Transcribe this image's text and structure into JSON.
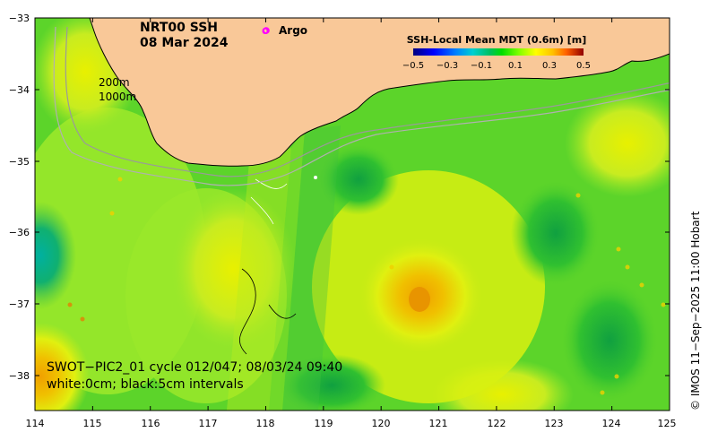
{
  "title": {
    "line1": "NRT00 SSH",
    "line2": "08 Mar 2024"
  },
  "argo": {
    "symbol": "o",
    "label": "Argo",
    "color": "#ff00ff"
  },
  "depth_labels": {
    "d200": "200m",
    "d1000": "1000m"
  },
  "colorbar": {
    "title": "SSH-Local Mean MDT (0.6m) [m]",
    "ticks": [
      "−0.5",
      "−0.3",
      "−0.1",
      "0.1",
      "0.3",
      "0.5"
    ],
    "colors": [
      "#00007f",
      "#0000ff",
      "#0080ff",
      "#00ffff",
      "#00c060",
      "#00dd00",
      "#80ff00",
      "#ffff00",
      "#ffc000",
      "#ff8000",
      "#ff0000",
      "#800000"
    ]
  },
  "caption": {
    "line1": "SWOT−PIC2_01 cycle 012/047; 08/03/24 09:40",
    "line2": "white:0cm; black:5cm intervals"
  },
  "x_ticks": [
    "114",
    "115",
    "116",
    "117",
    "118",
    "119",
    "120",
    "121",
    "122",
    "123",
    "124",
    "125"
  ],
  "y_ticks": [
    "−33",
    "−34",
    "−35",
    "−36",
    "−37",
    "−38"
  ],
  "credit": "© IMOS 11−Sep−2025 11:00 Hobart",
  "colors": {
    "land": "#f9c898",
    "sea_base": "#5cd42a",
    "sea_light": "#9ae82a",
    "sea_yellow": "#d8f010",
    "sea_orange": "#f0c000",
    "sea_dark": "#20b040",
    "sea_cyan": "#00b0a0"
  }
}
